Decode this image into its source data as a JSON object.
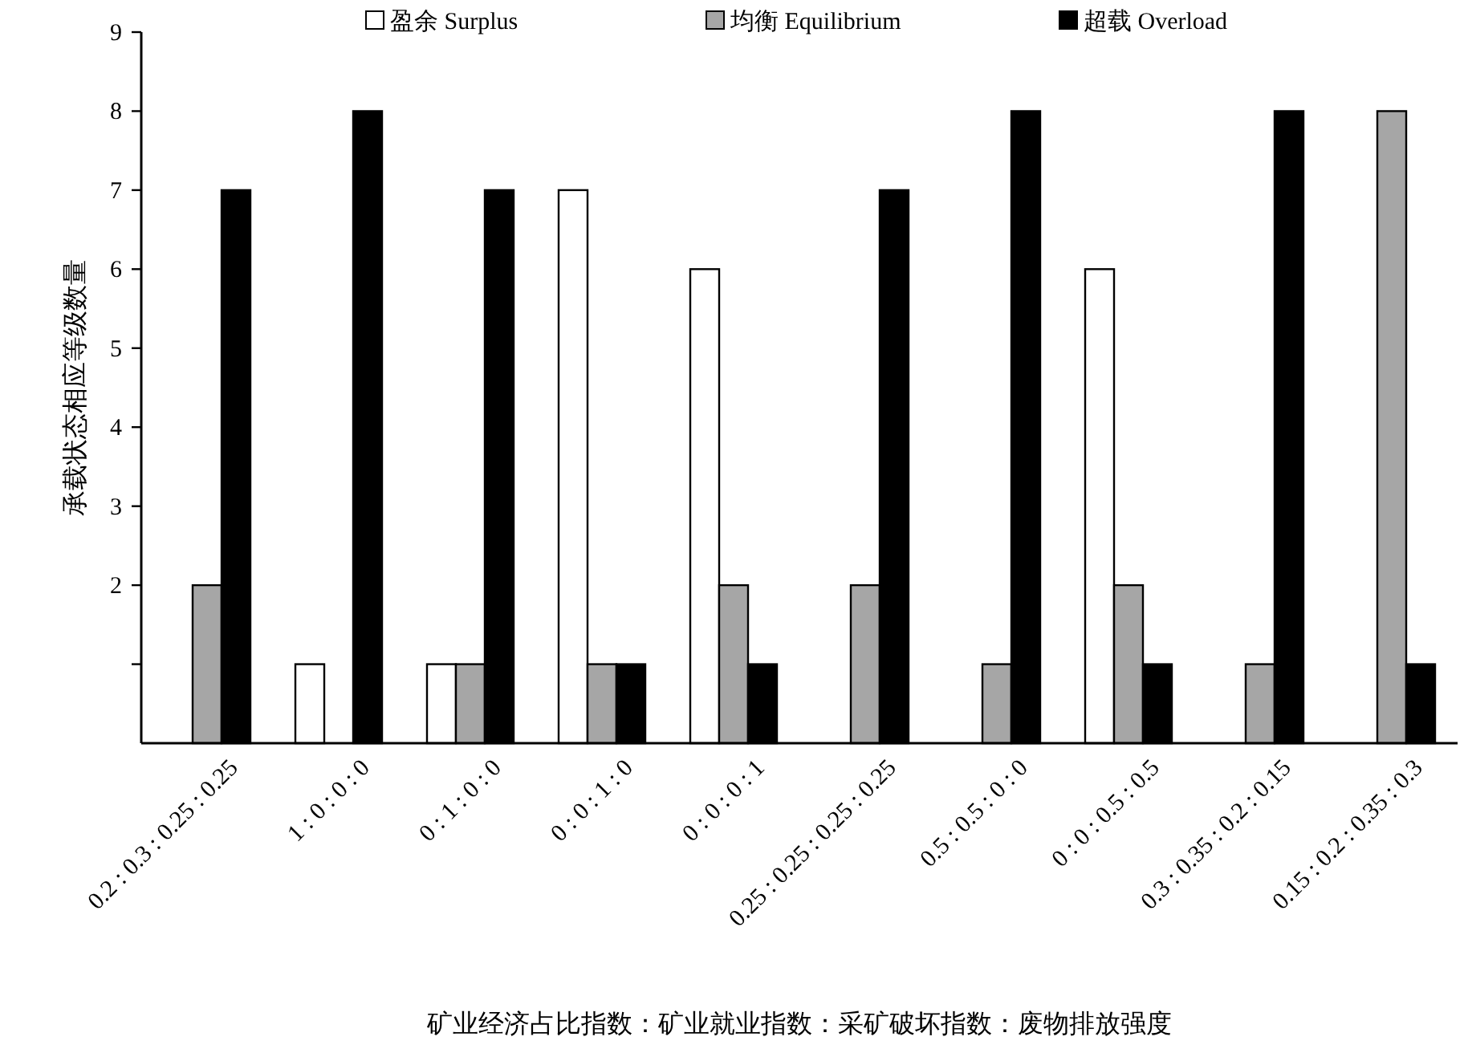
{
  "chart_data": {
    "type": "bar",
    "ylabel": "承载状态相应等级数量",
    "xlabel": "矿业经济占比指数：矿业就业指数：采矿破坏指数：废物排放强度",
    "categories": [
      "0.2 : 0.3 : 0.25 : 0.25",
      "1 : 0 : 0 : 0",
      "0 : 1 : 0 : 0",
      "0 : 0 : 1 : 0",
      "0 : 0 : 0 : 1",
      "0.25 : 0.25 : 0.25 : 0.25",
      "0.5 : 0.5 : 0 : 0",
      "0 : 0 : 0.5 : 0.5",
      "0.3 : 0.35 : 0.2 : 0.15",
      "0.15 : 0.2 : 0.35 : 0.3"
    ],
    "series": [
      {
        "name": "盈余 Surplus",
        "color": "#ffffff",
        "values": [
          0,
          1,
          1,
          7,
          6,
          0,
          0,
          6,
          0,
          0
        ]
      },
      {
        "name": "均衡 Equilibrium",
        "color": "#a6a6a6",
        "values": [
          2,
          0,
          1,
          1,
          2,
          2,
          1,
          2,
          1,
          8
        ]
      },
      {
        "name": "超载 Overload",
        "color": "#000000",
        "values": [
          7,
          8,
          7,
          1,
          1,
          7,
          8,
          1,
          8,
          1
        ]
      }
    ],
    "ylim": [
      0,
      9
    ],
    "yticks": [
      {
        "value": 1,
        "label": null
      },
      2,
      3,
      4,
      5,
      6,
      7,
      8,
      9
    ],
    "grid": false,
    "legend": "top"
  }
}
